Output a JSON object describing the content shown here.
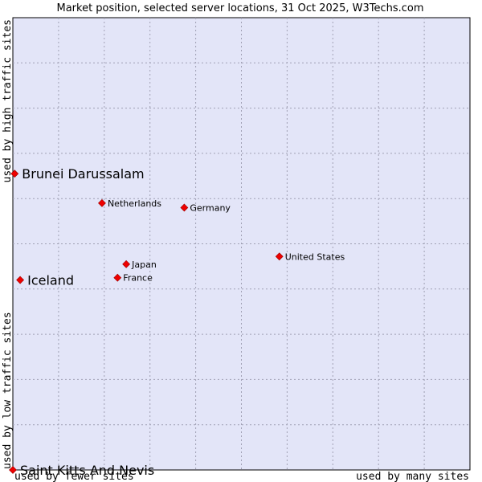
{
  "chart_data": {
    "type": "scatter",
    "title": "Market position, selected server locations, 31 Oct 2025, W3Techs.com",
    "xlabel_low": "used by fewer sites",
    "xlabel_high": "used by many sites",
    "ylabel_low": "used by low traffic sites",
    "ylabel_high": "used by high traffic sites",
    "xlim": [
      0,
      10
    ],
    "ylim": [
      0,
      10
    ],
    "grid": true,
    "point_color": "#ee0000",
    "background_color": "#e3e5f8",
    "grid_color": "#a0a0b4",
    "points": [
      {
        "name": "Brunei Darussalam",
        "x": 0.04,
        "y": 6.55,
        "size": "large"
      },
      {
        "name": "Netherlands",
        "x": 1.95,
        "y": 5.9,
        "size": "small"
      },
      {
        "name": "Germany",
        "x": 3.75,
        "y": 5.8,
        "size": "small"
      },
      {
        "name": "United States",
        "x": 5.83,
        "y": 4.72,
        "size": "small"
      },
      {
        "name": "Japan",
        "x": 2.48,
        "y": 4.55,
        "size": "small"
      },
      {
        "name": "France",
        "x": 2.29,
        "y": 4.25,
        "size": "small"
      },
      {
        "name": "Iceland",
        "x": 0.16,
        "y": 4.2,
        "size": "large"
      },
      {
        "name": "Saint Kitts And Nevis",
        "x": 0.0,
        "y": 0.0,
        "size": "large"
      }
    ]
  }
}
